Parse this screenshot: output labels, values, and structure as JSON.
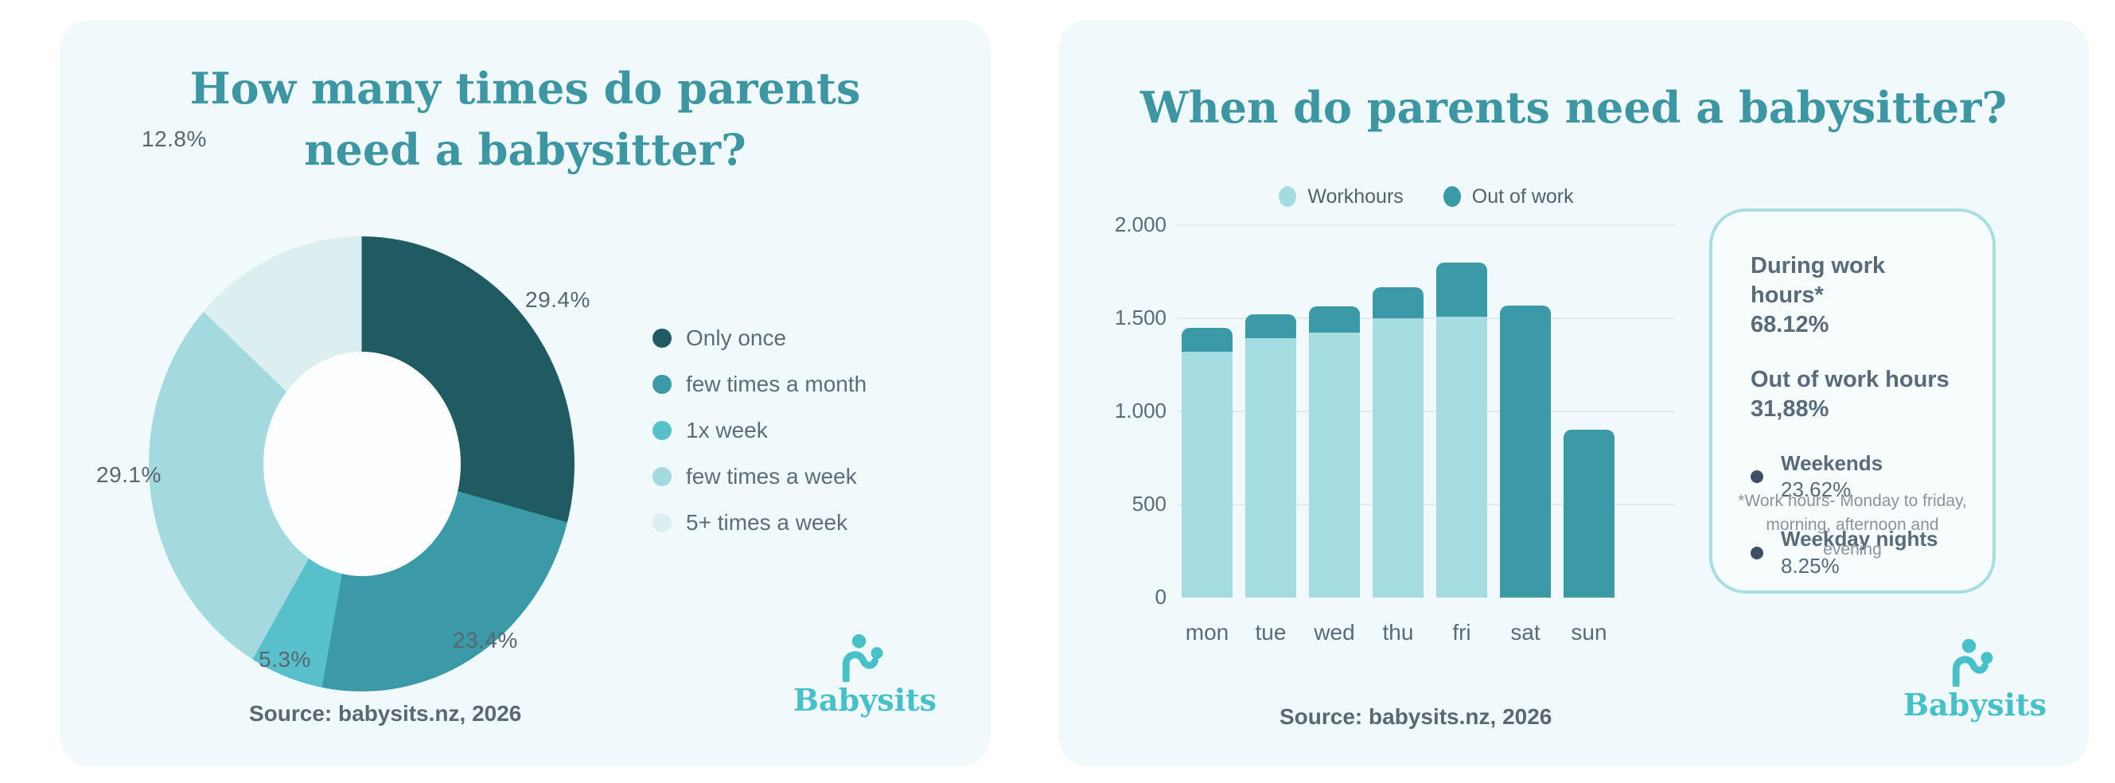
{
  "left_card": {
    "title_line1": "How many times do parents",
    "title_line2": "need a babysitter?",
    "donut_labels": [
      "29.4%",
      "23.4%",
      "5.3%",
      "29.1%",
      "12.8%"
    ],
    "legend": [
      {
        "label": "Only once",
        "color": "#1f5b61"
      },
      {
        "label": "few times a month",
        "color": "#3b9aa6"
      },
      {
        "label": "1x week",
        "color": "#57c0ca"
      },
      {
        "label": "few times a week",
        "color": "#a3d9df"
      },
      {
        "label": "5+ times a week",
        "color": "#dbeff1"
      }
    ],
    "source": "Source: babysits.nz, 2026",
    "logo_text": "Babysits"
  },
  "right_card": {
    "title": "When do parents need a babysitter?",
    "panel": {
      "heading1": "During work hours*",
      "value1": "68.12%",
      "heading2": "Out of work hours",
      "value2": "31,88%",
      "bullets": [
        {
          "label": "Weekends",
          "value": "23.62%"
        },
        {
          "label": "Weekday nights",
          "value": "8.25%"
        }
      ],
      "footnote": "*Work hours- Monday to friday, morning, afternoon and evening"
    },
    "source": "Source: babysits.nz, 2026",
    "logo_text": "Babysits"
  },
  "colors": {
    "card_background": "#f0f9fb",
    "title_teal": "#3d96a1",
    "logo_teal": "#49c0c7",
    "gridline": "#e2e9ec",
    "text_gray": "#5b6673",
    "bullet_navy": "#3f4e68",
    "panel_border": "#a9dde2"
  },
  "chart_data": [
    {
      "type": "pie",
      "donut": true,
      "title": "How many times do parents need a babysitter?",
      "labels": [
        "Only once",
        "few times a month",
        "1x week",
        "few times a week",
        "5+ times a week"
      ],
      "values": [
        29.4,
        23.4,
        5.3,
        29.1,
        12.8
      ],
      "unit": "%",
      "colors": [
        "#1f5b61",
        "#3b9aa6",
        "#57c0ca",
        "#a3d9df",
        "#dbeff1"
      ],
      "start_angle_deg": 0,
      "direction": "clockwise",
      "legend_position": "right"
    },
    {
      "type": "bar",
      "stacked": true,
      "title": "When do parents need a babysitter?",
      "categories": [
        "mon",
        "tue",
        "wed",
        "thu",
        "fri",
        "sat",
        "sun"
      ],
      "series": [
        {
          "name": "Workhours",
          "color": "#a4dce1",
          "values": [
            1320,
            1395,
            1425,
            1500,
            1510,
            0,
            0
          ]
        },
        {
          "name": "Out of work",
          "color": "#3b9aa6",
          "values": [
            130,
            125,
            140,
            165,
            290,
            1570,
            900
          ]
        }
      ],
      "ylim": [
        0,
        2000
      ],
      "y_ticks": [
        0,
        500,
        1000,
        1500,
        2000
      ],
      "y_tick_labels": [
        "0",
        "500",
        "1.000",
        "1.500",
        "2.000"
      ],
      "grid": true,
      "legend_position": "top"
    }
  ]
}
